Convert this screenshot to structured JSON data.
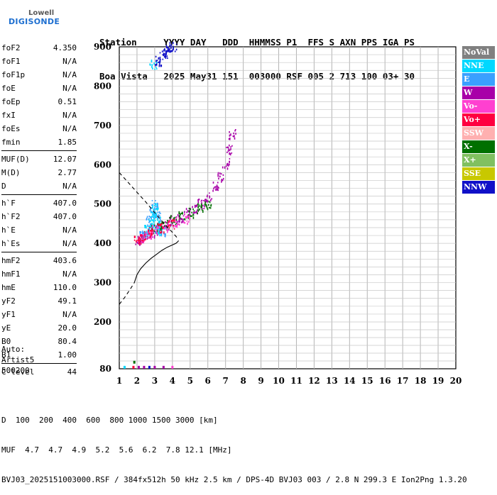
{
  "logo": {
    "line1": "Lowell",
    "line2": "DIGISONDE"
  },
  "header": {
    "labels": [
      "Station",
      "YYYY",
      "DAY",
      "DDD",
      "HHMMSS",
      "P1",
      "FFS",
      "S",
      "AXN",
      "PPS",
      "IGA",
      "PS"
    ],
    "values": [
      "Boa Vista",
      "2025",
      "May31",
      "151",
      "003000",
      "RSF",
      "005",
      "2",
      "713",
      "100",
      "03+",
      "30"
    ]
  },
  "params": [
    {
      "group": [
        {
          "name": "foF2",
          "value": "4.350"
        },
        {
          "name": "foF1",
          "value": "N/A"
        },
        {
          "name": "foF1p",
          "value": "N/A"
        },
        {
          "name": "foE",
          "value": "N/A"
        },
        {
          "name": "foEp",
          "value": "0.51"
        },
        {
          "name": "fxI",
          "value": "N/A"
        },
        {
          "name": "foEs",
          "value": "N/A"
        },
        {
          "name": "fmin",
          "value": "1.85"
        }
      ]
    },
    {
      "group": [
        {
          "name": "MUF(D)",
          "value": "12.07"
        },
        {
          "name": "M(D)",
          "value": "2.77"
        },
        {
          "name": "D",
          "value": "N/A"
        }
      ]
    },
    {
      "group": [
        {
          "name": "h`F",
          "value": "407.0"
        },
        {
          "name": "h`F2",
          "value": "407.0"
        },
        {
          "name": "h`E",
          "value": "N/A"
        },
        {
          "name": "h`Es",
          "value": "N/A"
        }
      ]
    },
    {
      "group": [
        {
          "name": "hmF2",
          "value": "403.6"
        },
        {
          "name": "hmF1",
          "value": "N/A"
        },
        {
          "name": "hmE",
          "value": "110.0"
        },
        {
          "name": "yF2",
          "value": "49.1"
        },
        {
          "name": "yF1",
          "value": "N/A"
        },
        {
          "name": "yE",
          "value": "20.0"
        },
        {
          "name": "B0",
          "value": "80.4"
        },
        {
          "name": "B1",
          "value": "1.00"
        }
      ]
    },
    {
      "group": [
        {
          "name": "C-level",
          "value": "44"
        }
      ]
    }
  ],
  "auto": {
    "line1": "Auto:",
    "line2": "Artist5",
    "line3": "500200"
  },
  "footer": {
    "d_label": "D",
    "d_values": "  100  200  400  600  800 1000 1500 3000 [km]",
    "muf_label": "MUF",
    "muf_values": "  4.7  4.7  4.9  5.2  5.6  6.2  7.8 12.1 [MHz]",
    "info": "BVJ03_2025151003000.RSF / 384fx512h 50 kHz 2.5 km / DPS-4D BVJ03 003 / 2.8 N 299.3 E Ion2Png 1.3.20"
  },
  "legend": [
    {
      "label": "NoVal",
      "color": "#808080"
    },
    {
      "label": "NNE",
      "color": "#00d8ff"
    },
    {
      "label": "E",
      "color": "#3aa0ff"
    },
    {
      "label": "W",
      "color": "#a800a8"
    },
    {
      "label": "Vo-",
      "color": "#ff40d0"
    },
    {
      "label": "Vo+",
      "color": "#ff0040"
    },
    {
      "label": "SSW",
      "color": "#ffb0b0"
    },
    {
      "label": "X-",
      "color": "#007000"
    },
    {
      "label": "X+",
      "color": "#80c060"
    },
    {
      "label": "SSE",
      "color": "#c8c800"
    },
    {
      "label": "NNW",
      "color": "#1010c8"
    }
  ],
  "chart_data": {
    "type": "scatter",
    "x_ticks": [
      "1",
      "2",
      "3",
      "4",
      "5",
      "6",
      "7",
      "8",
      "9",
      "10",
      "11",
      "12",
      "13",
      "14",
      "15",
      "16",
      "17",
      "18",
      "19",
      "20"
    ],
    "y_ticks": [
      "80",
      "200",
      "300",
      "400",
      "500",
      "600",
      "700",
      "800",
      "900"
    ],
    "xlim": [
      1,
      20
    ],
    "ylim": [
      80,
      900
    ],
    "grid": true,
    "series": [
      {
        "color": "#a800a8",
        "x": [
          2.1,
          2.4,
          2.8,
          3.2,
          3.6,
          4.0,
          4.4,
          4.8,
          5.2,
          5.6,
          6.0,
          6.4,
          6.7,
          7.0,
          7.2,
          7.35
        ],
        "y": [
          410,
          418,
          428,
          438,
          448,
          458,
          468,
          478,
          488,
          502,
          520,
          545,
          570,
          605,
          640,
          680
        ]
      },
      {
        "color": "#3aa0ff",
        "x": [
          2.3,
          2.5,
          2.7,
          2.9,
          3.0,
          3.1,
          3.2,
          3.4
        ],
        "y": [
          420,
          430,
          460,
          480,
          500,
          470,
          440,
          430
        ]
      },
      {
        "color": "#00d8ff",
        "x": [
          2.6,
          2.8,
          2.9,
          3.0,
          3.1,
          3.2,
          2.9
        ],
        "y": [
          440,
          450,
          470,
          490,
          460,
          430,
          855
        ]
      },
      {
        "color": "#007000",
        "x": [
          3.0,
          3.5,
          4.0,
          4.5,
          5.0,
          5.5,
          6.0
        ],
        "y": [
          440,
          450,
          460,
          470,
          480,
          490,
          500
        ]
      },
      {
        "color": "#ff40d0",
        "x": [
          2.2,
          2.6,
          3.0,
          3.6,
          4.2,
          4.8
        ],
        "y": [
          415,
          425,
          435,
          445,
          455,
          465
        ]
      },
      {
        "color": "#ff0040",
        "x": [
          2.0,
          2.3,
          2.7,
          3.3,
          3.9
        ],
        "y": [
          412,
          420,
          430,
          440,
          450
        ]
      },
      {
        "color": "#1010c8",
        "x": [
          3.2,
          3.4,
          3.6,
          3.8,
          4.0
        ],
        "y": [
          865,
          875,
          885,
          893,
          900
        ]
      }
    ],
    "profile": {
      "x": [
        1.85,
        2.0,
        2.2,
        2.5,
        2.8,
        3.1,
        3.4,
        3.7,
        4.0,
        4.2,
        4.3,
        4.35
      ],
      "y": [
        300,
        320,
        335,
        350,
        362,
        372,
        382,
        390,
        396,
        400,
        404,
        407
      ]
    },
    "profile_extrapolated": {
      "x": [
        1.0,
        1.3,
        1.6,
        1.85
      ],
      "y": [
        245,
        262,
        282,
        300
      ]
    },
    "muf_curve": {
      "x": [
        1.0,
        1.5,
        2.0,
        2.5,
        3.0,
        3.5,
        4.0,
        4.35
      ],
      "y": [
        580,
        555,
        530,
        505,
        478,
        452,
        428,
        410
      ]
    },
    "low_marks": [
      {
        "x": 1.3,
        "y": 82,
        "color": "#00d8ff"
      },
      {
        "x": 1.8,
        "y": 82,
        "color": "#ff0040"
      },
      {
        "x": 1.85,
        "y": 95,
        "color": "#007000"
      },
      {
        "x": 2.1,
        "y": 82,
        "color": "#a800a8"
      },
      {
        "x": 2.4,
        "y": 82,
        "color": "#a800a8"
      },
      {
        "x": 2.7,
        "y": 82,
        "color": "#1010c8"
      },
      {
        "x": 3.0,
        "y": 82,
        "color": "#a800a8"
      },
      {
        "x": 3.5,
        "y": 82,
        "color": "#a800a8"
      },
      {
        "x": 4.0,
        "y": 82,
        "color": "#ff40d0"
      }
    ]
  }
}
